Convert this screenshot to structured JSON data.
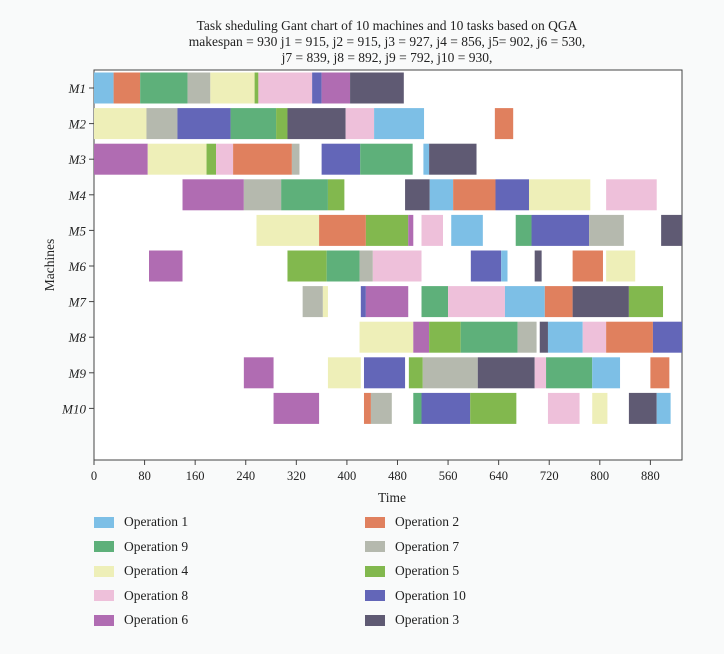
{
  "chart_data": {
    "type": "gantt",
    "title_lines": [
      "Task sheduling Gant chart of 10 machines and 10 tasks based on QGA",
      "makespan = 930 j1 = 915, j2 = 915, j3 = 927, j4 = 856, j5= 902, j6 = 530,",
      "j7 = 839, j8 = 892, j9 = 792, j10 = 930,"
    ],
    "xlabel": "Time",
    "ylabel": "Machines",
    "xlim": [
      0,
      930
    ],
    "xticks": [
      0,
      80,
      160,
      240,
      320,
      400,
      480,
      560,
      640,
      720,
      800,
      880
    ],
    "machines": [
      "M1",
      "M2",
      "M3",
      "M4",
      "M5",
      "M6",
      "M7",
      "M8",
      "M9",
      "M10"
    ],
    "legend_position": "bottom",
    "operations": [
      {
        "name": "Operation 1",
        "color": "#7dbfe6"
      },
      {
        "name": "Operation 2",
        "color": "#e0805e"
      },
      {
        "name": "Operation 9",
        "color": "#5eb07a"
      },
      {
        "name": "Operation 7",
        "color": "#b5b9ae"
      },
      {
        "name": "Operation 4",
        "color": "#eeefb8"
      },
      {
        "name": "Operation 5",
        "color": "#82b84e"
      },
      {
        "name": "Operation 8",
        "color": "#eec0da"
      },
      {
        "name": "Operation 10",
        "color": "#6366b8"
      },
      {
        "name": "Operation 6",
        "color": "#b06cb2"
      },
      {
        "name": "Operation 3",
        "color": "#5f5a73"
      }
    ],
    "tasks": [
      {
        "m": 0,
        "s": 0,
        "e": 31,
        "op": 0
      },
      {
        "m": 0,
        "s": 31,
        "e": 73,
        "op": 1
      },
      {
        "m": 0,
        "s": 73,
        "e": 148,
        "op": 2
      },
      {
        "m": 0,
        "s": 148,
        "e": 184,
        "op": 3
      },
      {
        "m": 0,
        "s": 184,
        "e": 254,
        "op": 4
      },
      {
        "m": 0,
        "s": 254,
        "e": 260,
        "op": 5
      },
      {
        "m": 0,
        "s": 260,
        "e": 345,
        "op": 6
      },
      {
        "m": 0,
        "s": 345,
        "e": 360,
        "op": 7
      },
      {
        "m": 0,
        "s": 360,
        "e": 405,
        "op": 8
      },
      {
        "m": 0,
        "s": 405,
        "e": 490,
        "op": 9
      },
      {
        "m": 1,
        "s": 0,
        "e": 83,
        "op": 4
      },
      {
        "m": 1,
        "s": 83,
        "e": 132,
        "op": 3
      },
      {
        "m": 1,
        "s": 132,
        "e": 216,
        "op": 7
      },
      {
        "m": 1,
        "s": 216,
        "e": 288,
        "op": 2
      },
      {
        "m": 1,
        "s": 288,
        "e": 306,
        "op": 5
      },
      {
        "m": 1,
        "s": 306,
        "e": 398,
        "op": 9
      },
      {
        "m": 1,
        "s": 398,
        "e": 443,
        "op": 6
      },
      {
        "m": 1,
        "s": 443,
        "e": 522,
        "op": 0
      },
      {
        "m": 1,
        "s": 634,
        "e": 663,
        "op": 1
      },
      {
        "m": 2,
        "s": 0,
        "e": 85,
        "op": 8
      },
      {
        "m": 2,
        "s": 85,
        "e": 178,
        "op": 4
      },
      {
        "m": 2,
        "s": 178,
        "e": 193,
        "op": 5
      },
      {
        "m": 2,
        "s": 193,
        "e": 220,
        "op": 6
      },
      {
        "m": 2,
        "s": 220,
        "e": 313,
        "op": 1
      },
      {
        "m": 2,
        "s": 313,
        "e": 325,
        "op": 3
      },
      {
        "m": 2,
        "s": 360,
        "e": 421,
        "op": 7
      },
      {
        "m": 2,
        "s": 421,
        "e": 504,
        "op": 2
      },
      {
        "m": 2,
        "s": 521,
        "e": 530,
        "op": 0
      },
      {
        "m": 2,
        "s": 530,
        "e": 605,
        "op": 9
      },
      {
        "m": 3,
        "s": 140,
        "e": 237,
        "op": 8
      },
      {
        "m": 3,
        "s": 237,
        "e": 296,
        "op": 3
      },
      {
        "m": 3,
        "s": 296,
        "e": 370,
        "op": 2
      },
      {
        "m": 3,
        "s": 370,
        "e": 396,
        "op": 5
      },
      {
        "m": 3,
        "s": 492,
        "e": 531,
        "op": 9
      },
      {
        "m": 3,
        "s": 531,
        "e": 568,
        "op": 0
      },
      {
        "m": 3,
        "s": 568,
        "e": 635,
        "op": 1
      },
      {
        "m": 3,
        "s": 635,
        "e": 688,
        "op": 7
      },
      {
        "m": 3,
        "s": 688,
        "e": 785,
        "op": 4
      },
      {
        "m": 3,
        "s": 810,
        "e": 890,
        "op": 6
      },
      {
        "m": 4,
        "s": 257,
        "e": 356,
        "op": 4
      },
      {
        "m": 4,
        "s": 356,
        "e": 430,
        "op": 1
      },
      {
        "m": 4,
        "s": 430,
        "e": 497,
        "op": 5
      },
      {
        "m": 4,
        "s": 497,
        "e": 505,
        "op": 8
      },
      {
        "m": 4,
        "s": 518,
        "e": 552,
        "op": 6
      },
      {
        "m": 4,
        "s": 565,
        "e": 615,
        "op": 0
      },
      {
        "m": 4,
        "s": 667,
        "e": 692,
        "op": 2
      },
      {
        "m": 4,
        "s": 692,
        "e": 783,
        "op": 7
      },
      {
        "m": 4,
        "s": 783,
        "e": 838,
        "op": 3
      },
      {
        "m": 4,
        "s": 897,
        "e": 930,
        "op": 9
      },
      {
        "m": 5,
        "s": 87,
        "e": 140,
        "op": 8
      },
      {
        "m": 5,
        "s": 306,
        "e": 368,
        "op": 5
      },
      {
        "m": 5,
        "s": 368,
        "e": 420,
        "op": 2
      },
      {
        "m": 5,
        "s": 420,
        "e": 441,
        "op": 3
      },
      {
        "m": 5,
        "s": 441,
        "e": 518,
        "op": 6
      },
      {
        "m": 5,
        "s": 596,
        "e": 644,
        "op": 7
      },
      {
        "m": 5,
        "s": 644,
        "e": 654,
        "op": 0
      },
      {
        "m": 5,
        "s": 697,
        "e": 708,
        "op": 9
      },
      {
        "m": 5,
        "s": 757,
        "e": 805,
        "op": 1
      },
      {
        "m": 5,
        "s": 810,
        "e": 856,
        "op": 4
      },
      {
        "m": 6,
        "s": 330,
        "e": 362,
        "op": 3
      },
      {
        "m": 6,
        "s": 362,
        "e": 370,
        "op": 4
      },
      {
        "m": 6,
        "s": 422,
        "e": 430,
        "op": 7
      },
      {
        "m": 6,
        "s": 430,
        "e": 497,
        "op": 8
      },
      {
        "m": 6,
        "s": 518,
        "e": 560,
        "op": 2
      },
      {
        "m": 6,
        "s": 560,
        "e": 650,
        "op": 6
      },
      {
        "m": 6,
        "s": 650,
        "e": 713,
        "op": 0
      },
      {
        "m": 6,
        "s": 713,
        "e": 757,
        "op": 1
      },
      {
        "m": 6,
        "s": 757,
        "e": 846,
        "op": 9
      },
      {
        "m": 6,
        "s": 846,
        "e": 900,
        "op": 5
      },
      {
        "m": 7,
        "s": 420,
        "e": 505,
        "op": 4
      },
      {
        "m": 7,
        "s": 505,
        "e": 530,
        "op": 8
      },
      {
        "m": 7,
        "s": 530,
        "e": 580,
        "op": 5
      },
      {
        "m": 7,
        "s": 580,
        "e": 670,
        "op": 2
      },
      {
        "m": 7,
        "s": 670,
        "e": 700,
        "op": 3
      },
      {
        "m": 7,
        "s": 705,
        "e": 718,
        "op": 9
      },
      {
        "m": 7,
        "s": 718,
        "e": 773,
        "op": 0
      },
      {
        "m": 7,
        "s": 773,
        "e": 810,
        "op": 6
      },
      {
        "m": 7,
        "s": 810,
        "e": 884,
        "op": 1
      },
      {
        "m": 7,
        "s": 884,
        "e": 930,
        "op": 7
      },
      {
        "m": 8,
        "s": 237,
        "e": 284,
        "op": 8
      },
      {
        "m": 8,
        "s": 370,
        "e": 422,
        "op": 4
      },
      {
        "m": 8,
        "s": 427,
        "e": 492,
        "op": 7
      },
      {
        "m": 8,
        "s": 498,
        "e": 520,
        "op": 5
      },
      {
        "m": 8,
        "s": 520,
        "e": 607,
        "op": 3
      },
      {
        "m": 8,
        "s": 607,
        "e": 697,
        "op": 9
      },
      {
        "m": 8,
        "s": 697,
        "e": 715,
        "op": 6
      },
      {
        "m": 8,
        "s": 715,
        "e": 788,
        "op": 2
      },
      {
        "m": 8,
        "s": 788,
        "e": 832,
        "op": 0
      },
      {
        "m": 8,
        "s": 880,
        "e": 910,
        "op": 1
      },
      {
        "m": 9,
        "s": 284,
        "e": 356,
        "op": 8
      },
      {
        "m": 9,
        "s": 427,
        "e": 438,
        "op": 1
      },
      {
        "m": 9,
        "s": 438,
        "e": 471,
        "op": 3
      },
      {
        "m": 9,
        "s": 505,
        "e": 518,
        "op": 2
      },
      {
        "m": 9,
        "s": 518,
        "e": 595,
        "op": 7
      },
      {
        "m": 9,
        "s": 595,
        "e": 668,
        "op": 5
      },
      {
        "m": 9,
        "s": 718,
        "e": 768,
        "op": 6
      },
      {
        "m": 9,
        "s": 788,
        "e": 812,
        "op": 4
      },
      {
        "m": 9,
        "s": 846,
        "e": 890,
        "op": 9
      },
      {
        "m": 9,
        "s": 890,
        "e": 912,
        "op": 0
      }
    ]
  }
}
